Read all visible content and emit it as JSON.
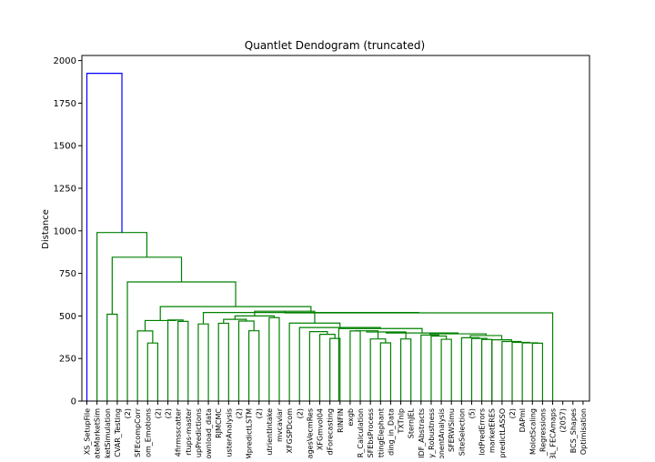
{
  "chart_data": {
    "type": "dendrogram",
    "title": "Quantlet Dendogram (truncated)",
    "xlabel": "",
    "ylabel": "Distance",
    "ylim": [
      0,
      2030
    ],
    "yticks": [
      0,
      250,
      500,
      750,
      1000,
      1250,
      1500,
      1750,
      2000
    ],
    "grid": false,
    "legend": "none",
    "colors": {
      "root_link": "#0000ff",
      "cluster_link": "#008000",
      "axis": "#000000"
    },
    "leaves": [
      "XS_SetupFile",
      "ateMarketSim",
      "ketSimulation",
      "CVAR_Testing",
      "(2)",
      "SFEcompCorr",
      "om_Emotions",
      "(2)",
      "(2)",
      "4firmsscatter",
      "rtups-master",
      "upPredictions",
      "ownload_data",
      "RJMCMC",
      "usterAnalysis",
      "(2)",
      "MpredictLSTM",
      "(2)",
      "utrientIntake",
      "mvcaviar",
      "XFGSPDcom",
      "(2)",
      "agesVecmRes",
      "XFGmvol04",
      "dForecasting",
      "RINFIN",
      "exgb",
      "R_Calculation",
      "SFEbsProcess",
      "ttingElephant",
      "ding_in_Data",
      "TXTnlp",
      "SternJEL",
      "IDF_Abstracts",
      "y_Robustness",
      "onentAnalysis",
      "SFERWSimu",
      "SiteSelection",
      "(5)",
      "lotPredErrors",
      "marketERES",
      "predictLASSO",
      "(2)",
      "DAPml",
      "MolotScaling",
      "_Regressions",
      "3L_FECAmaps",
      "(2057)",
      "BCS_Shapes",
      "Optimisation"
    ],
    "links": [
      {
        "a": 9,
        "b": 10,
        "h": 468,
        "series": "cluster"
      },
      {
        "a": 8,
        "b": 9.5,
        "h": 476,
        "series": "cluster"
      },
      {
        "a": 13,
        "b": 14,
        "h": 457,
        "series": "cluster"
      },
      {
        "a": 16,
        "b": 17,
        "h": 413,
        "series": "cluster"
      },
      {
        "a": 15,
        "b": 16.5,
        "h": 470,
        "series": "cluster"
      },
      {
        "a": 13.5,
        "b": 15.75,
        "h": 480,
        "series": "cluster"
      },
      {
        "a": 6,
        "b": 7,
        "h": 341,
        "series": "cluster"
      },
      {
        "a": 5,
        "b": 6.5,
        "h": 412,
        "series": "cluster"
      },
      {
        "a": 5.75,
        "b": 8.75,
        "h": 473,
        "series": "cluster"
      },
      {
        "a": 11,
        "b": 12,
        "h": 453,
        "series": "cluster"
      },
      {
        "a": 18,
        "b": 19,
        "h": 490,
        "series": "cluster"
      },
      {
        "a": 14.625,
        "b": 18.5,
        "h": 500,
        "series": "cluster"
      },
      {
        "a": 24,
        "b": 25,
        "h": 368,
        "series": "cluster"
      },
      {
        "a": 23,
        "b": 24.5,
        "h": 392,
        "series": "cluster"
      },
      {
        "a": 22,
        "b": 23.75,
        "h": 408,
        "series": "cluster"
      },
      {
        "a": 29,
        "b": 30,
        "h": 342,
        "series": "cluster"
      },
      {
        "a": 28,
        "b": 29.5,
        "h": 365,
        "series": "cluster"
      },
      {
        "a": 26,
        "b": 27,
        "h": 412,
        "series": "cluster"
      },
      {
        "a": 26.5,
        "b": 28.75,
        "h": 413,
        "series": "cluster"
      },
      {
        "a": 31,
        "b": 32,
        "h": 365,
        "series": "cluster"
      },
      {
        "a": 27.625,
        "b": 31.5,
        "h": 406,
        "series": "cluster"
      },
      {
        "a": 35,
        "b": 36,
        "h": 363,
        "series": "cluster"
      },
      {
        "a": 34,
        "b": 35.5,
        "h": 382,
        "series": "cluster"
      },
      {
        "a": 33,
        "b": 34.75,
        "h": 388,
        "series": "cluster"
      },
      {
        "a": 39,
        "b": 40,
        "h": 362,
        "series": "cluster"
      },
      {
        "a": 38,
        "b": 39.5,
        "h": 368,
        "series": "cluster"
      },
      {
        "a": 37,
        "b": 38.75,
        "h": 372,
        "series": "cluster"
      },
      {
        "a": 44,
        "b": 45,
        "h": 340,
        "series": "cluster"
      },
      {
        "a": 43,
        "b": 44.5,
        "h": 342,
        "series": "cluster"
      },
      {
        "a": 42,
        "b": 43.75,
        "h": 345,
        "series": "cluster"
      },
      {
        "a": 41,
        "b": 42.875,
        "h": 350,
        "series": "cluster"
      },
      {
        "a": 40,
        "b": 41.9375,
        "h": 360,
        "series": "cluster"
      },
      {
        "a": 37.875,
        "b": 40.96875,
        "h": 385,
        "series": "cluster"
      },
      {
        "a": 33.875,
        "b": 39.421875,
        "h": 395,
        "series": "cluster"
      },
      {
        "a": 29.5625,
        "b": 36.6484375,
        "h": 400,
        "series": "cluster"
      },
      {
        "a": 24.875,
        "b": 33.10546875,
        "h": 426,
        "series": "cluster"
      },
      {
        "a": 21,
        "b": 28.990234375,
        "h": 432,
        "series": "cluster"
      },
      {
        "a": 20,
        "b": 24.9951171875,
        "h": 458,
        "series": "cluster"
      },
      {
        "a": 16.5625,
        "b": 22.49755859375,
        "h": 528,
        "series": "cluster"
      },
      {
        "a": 19.530029296875,
        "b": 46,
        "h": 518,
        "series": "cluster"
      },
      {
        "a": 11.5,
        "b": 32.7650146484375,
        "h": 520,
        "series": "cluster"
      },
      {
        "a": 7.25,
        "b": 22.13250732421875,
        "h": 555,
        "series": "cluster"
      },
      {
        "a": 2,
        "b": 3,
        "h": 510,
        "series": "cluster"
      },
      {
        "a": 4,
        "b": 14.691253662109375,
        "h": 700,
        "series": "cluster"
      },
      {
        "a": 1,
        "b": 2.5,
        "h": 0,
        "series": "skip"
      },
      {
        "a": 2.5,
        "b": 9.345626831054688,
        "h": 845,
        "series": "cluster"
      },
      {
        "a": 1,
        "b": 5.922813415527344,
        "h": 990,
        "series": "cluster"
      },
      {
        "a": 0,
        "b": 3.461406707763672,
        "h": 1925,
        "series": "root"
      }
    ]
  }
}
